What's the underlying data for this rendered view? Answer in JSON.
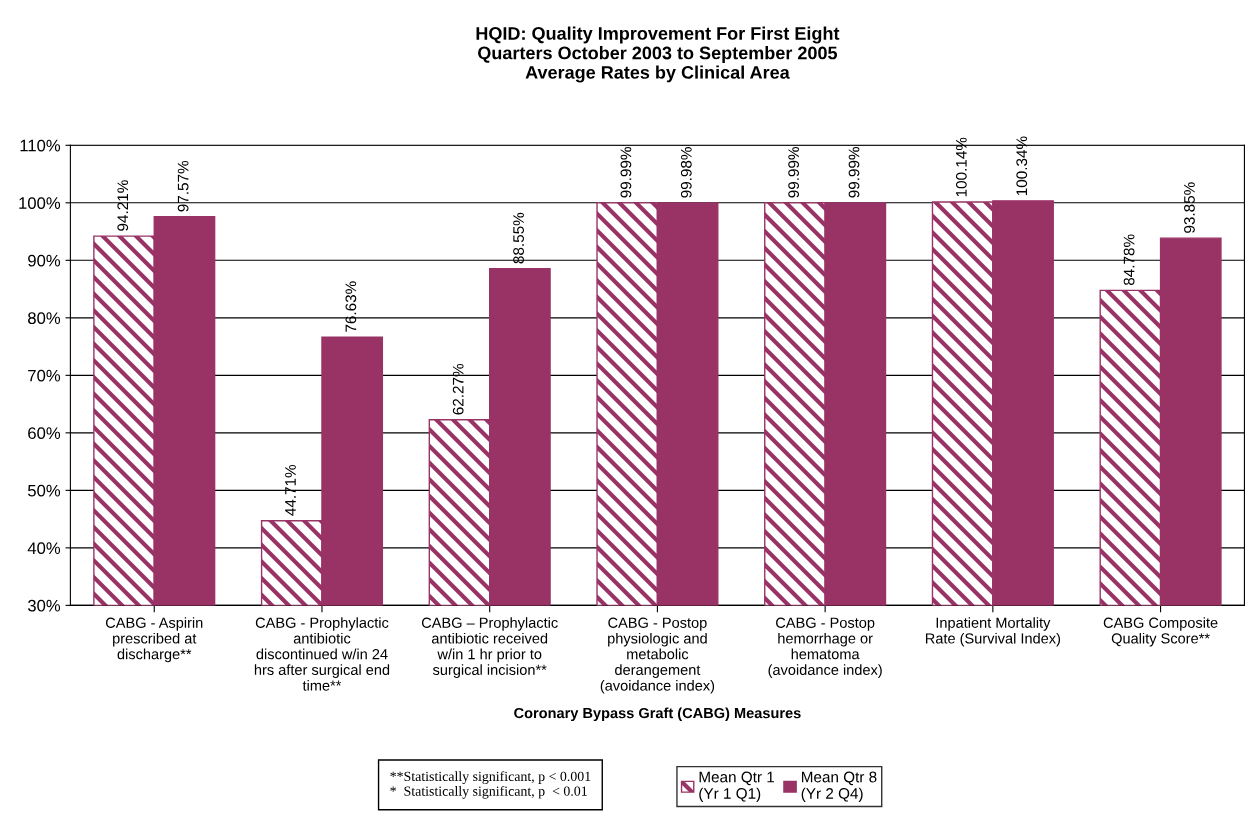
{
  "chart_data": {
    "type": "bar",
    "title": "HQID: Quality Improvement For First Eight\nQuarters October 2003 to September 2005\nAverage Rates by Clinical Area",
    "xlabel": "Coronary Bypass Graft (CABG) Measures",
    "categories": [
      "CABG - Aspirin\nprescribed at\ndischarge**",
      "CABG - Prophylactic\nantibiotic\ndiscontinued w/in 24\nhrs after surgical end\ntime**",
      "CABG – Prophylactic\nantibiotic received\nw/in 1 hr prior to\nsurgical incision**",
      "CABG - Postop\nphysiologic and\nmetabolic\nderangement\n(avoidance index)",
      "CABG - Postop\nhemorrhage or\nhematoma\n(avoidance index)",
      "Inpatient Mortality\nRate (Survival Index)",
      "CABG Composite\nQuality Score**"
    ],
    "series": [
      {
        "name": "Mean Qtr 1\n(Yr 1 Q1)",
        "color": "#993366",
        "values": [
          94.21,
          44.71,
          62.27,
          99.99,
          99.99,
          100.14,
          84.78
        ],
        "value_labels": [
          "94.21%",
          "44.71%",
          "62.27%",
          "99.99%",
          "99.99%",
          "100.14%",
          "84.78%"
        ]
      },
      {
        "name": "Mean Qtr 8\n(Yr 2 Q4)",
        "color": "#993366",
        "values": [
          97.57,
          76.63,
          88.55,
          99.98,
          99.99,
          100.34,
          93.85
        ],
        "value_labels": [
          "97.57%",
          "76.63%",
          "88.55%",
          "99.98%",
          "99.99%",
          "100.34%",
          "93.85%"
        ]
      }
    ],
    "ylim": [
      30,
      110
    ],
    "yticks": [
      {
        "value": 30,
        "label": "30%"
      },
      {
        "value": 40,
        "label": "40%"
      },
      {
        "value": 50,
        "label": "50%"
      },
      {
        "value": 60,
        "label": "60%"
      },
      {
        "value": 70,
        "label": "70%"
      },
      {
        "value": 80,
        "label": "80%"
      },
      {
        "value": 90,
        "label": "90%"
      },
      {
        "value": 100,
        "label": "100%"
      },
      {
        "value": 110,
        "label": "110%"
      }
    ],
    "grid": "y",
    "legend": "bottom",
    "annotations": [
      "**Statistically significant, p < 0.001\n*  Statistically significant, p  < 0.01"
    ]
  }
}
